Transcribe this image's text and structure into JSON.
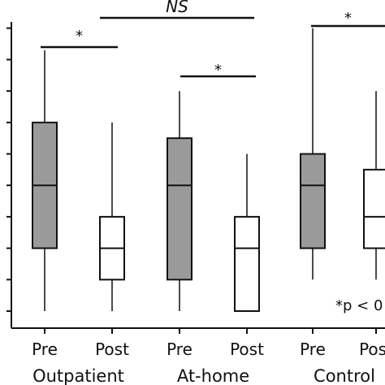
{
  "chart_data": {
    "type": "box",
    "title": "",
    "xlabel": "",
    "ylabel": "",
    "ylim": [
      0,
      10
    ],
    "y_ticks": [
      0,
      1,
      2,
      3,
      4,
      5,
      6,
      7,
      8,
      9,
      10
    ],
    "box_fills": {
      "Pre": "#9a9a9a",
      "Post": "#ffffff"
    },
    "groups": [
      {
        "label": "Outpatient",
        "boxes": [
          {
            "label": "Pre",
            "min": 0,
            "q1": 2,
            "median": 4,
            "q3": 6,
            "max": 8.3
          },
          {
            "label": "Post",
            "min": 0,
            "q1": 1,
            "median": 2,
            "q3": 3,
            "max": 6
          }
        ]
      },
      {
        "label": "At-home",
        "boxes": [
          {
            "label": "Pre",
            "min": 0,
            "q1": 1,
            "median": 4,
            "q3": 5.5,
            "max": 7
          },
          {
            "label": "Post",
            "min": 0,
            "q1": 0,
            "median": 2,
            "q3": 3,
            "max": 5
          }
        ]
      },
      {
        "label": "Control",
        "boxes": [
          {
            "label": "Pre",
            "min": 1,
            "q1": 2,
            "median": 4,
            "q3": 5,
            "max": 9
          },
          {
            "label": "Post",
            "min": 1,
            "q1": 2,
            "median": 3,
            "q3": 4.5,
            "max": 7
          }
        ]
      }
    ],
    "annotations": [
      {
        "text": "*",
        "between": [
          "Outpatient Pre",
          "Outpatient Post"
        ]
      },
      {
        "text": "NS",
        "between": [
          "Outpatient Post",
          "At-home Post"
        ]
      },
      {
        "text": "*",
        "between": [
          "At-home Pre",
          "At-home Post"
        ]
      },
      {
        "text": "*",
        "between": [
          "Control Pre",
          "Control Post"
        ]
      }
    ],
    "note": "*p < 0"
  }
}
